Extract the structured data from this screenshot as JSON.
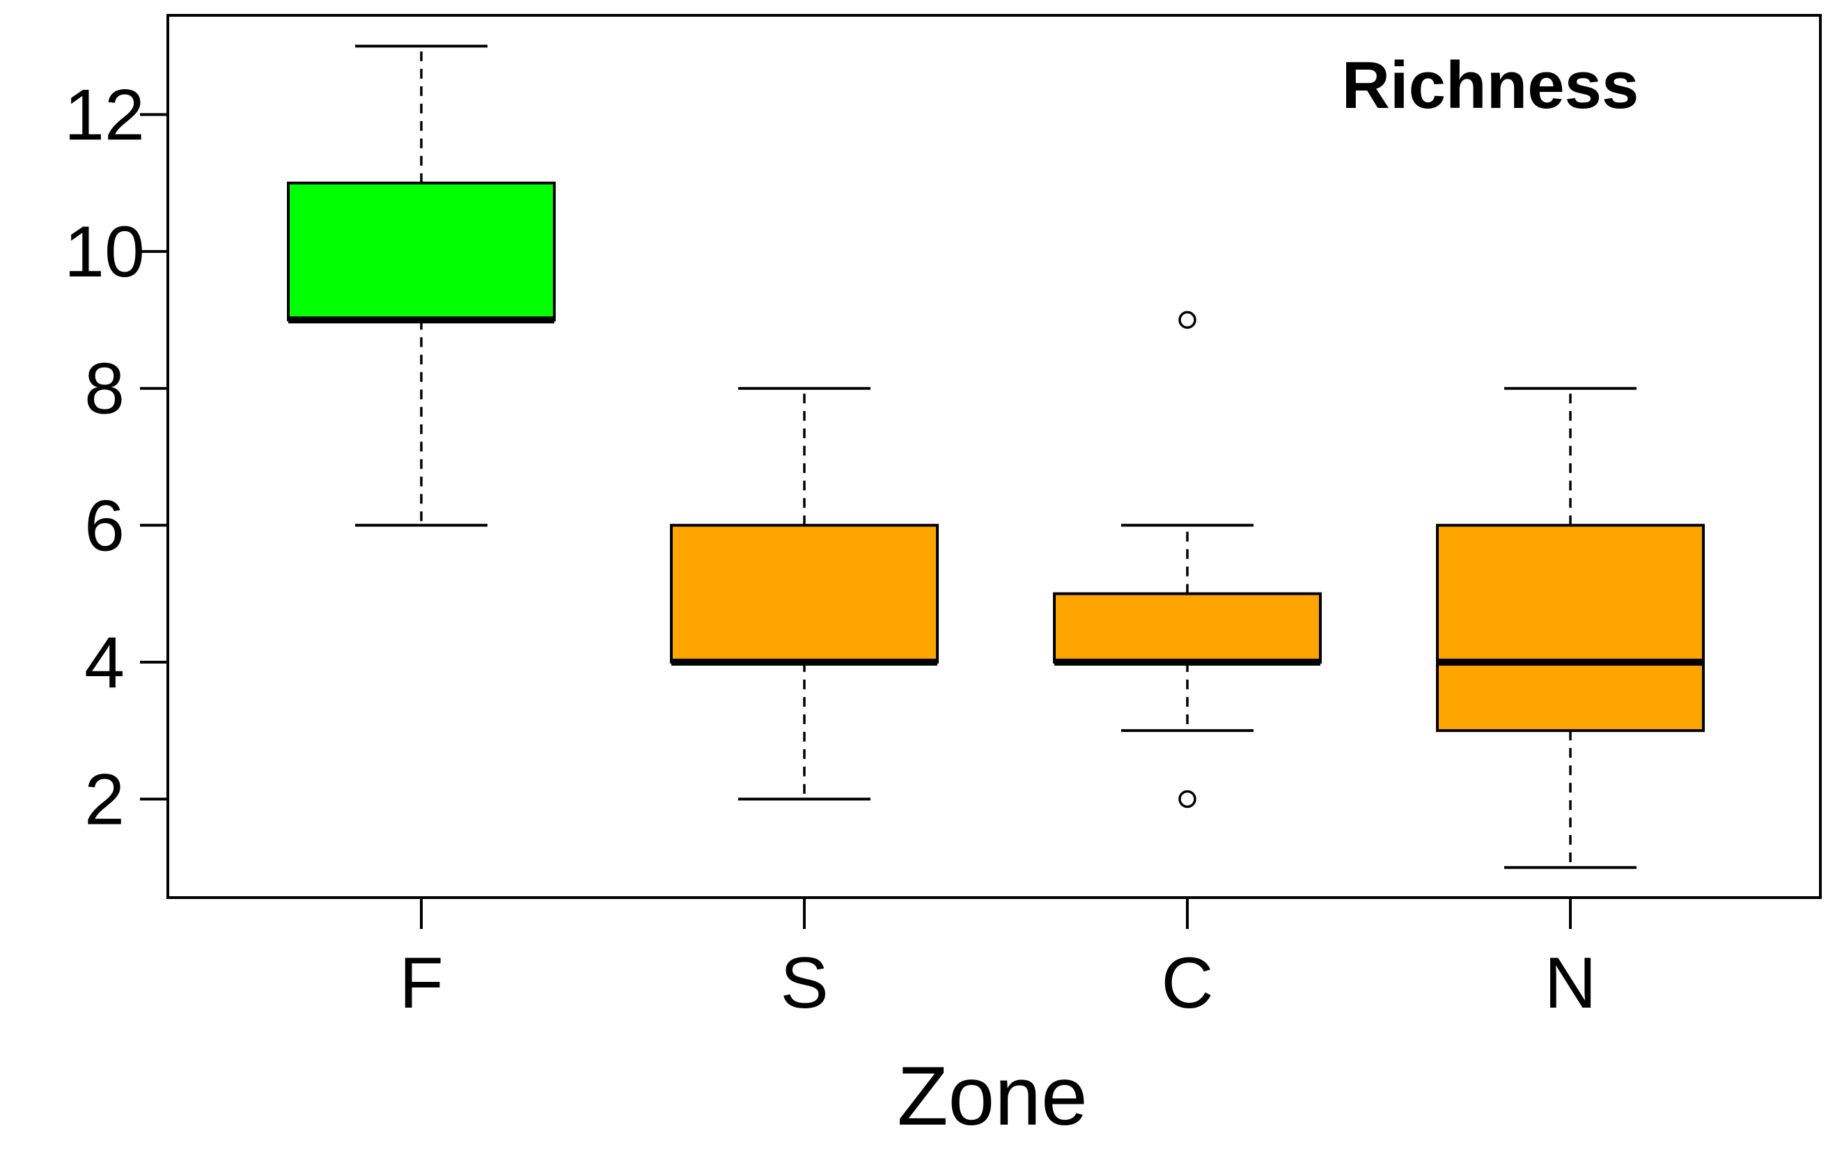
{
  "chart_data": {
    "type": "boxplot",
    "title": "",
    "annotation": "Richness",
    "xlabel": "Zone",
    "ylabel": "",
    "categories": [
      "F",
      "S",
      "C",
      "N"
    ],
    "y_ticks": [
      "2",
      "4",
      "6",
      "8",
      "10",
      "12"
    ],
    "y_tick_values": [
      2,
      4,
      6,
      8,
      10,
      12
    ],
    "ylim": [
      0.56,
      13.45
    ],
    "grid": false,
    "legend": "none",
    "boxes": [
      {
        "category": "F",
        "whisker_low": 6,
        "q1": 9,
        "median": 9,
        "q3": 11,
        "whisker_high": 13,
        "outliers": [],
        "color": "#00ff00"
      },
      {
        "category": "S",
        "whisker_low": 2,
        "q1": 4,
        "median": 4,
        "q3": 6,
        "whisker_high": 8,
        "outliers": [],
        "color": "#ffa500"
      },
      {
        "category": "C",
        "whisker_low": 3,
        "q1": 4,
        "median": 4,
        "q3": 5,
        "whisker_high": 6,
        "outliers": [
          9,
          2
        ],
        "color": "#ffa500"
      },
      {
        "category": "N",
        "whisker_low": 1,
        "q1": 3,
        "median": 4,
        "q3": 6,
        "whisker_high": 8,
        "outliers": [],
        "color": "#ffa500"
      }
    ]
  }
}
